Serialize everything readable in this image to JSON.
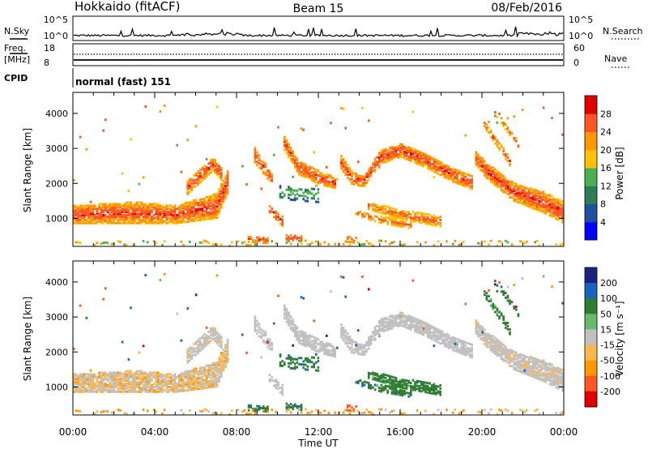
{
  "header": {
    "station": "Hokkaido (fitACF)",
    "beam": "Beam 15",
    "date": "08/Feb/2016"
  },
  "noise_panel": {
    "left_label": "N.Sky",
    "right_label": "N.Search",
    "ticks_left": [
      "10^5",
      "10^0"
    ],
    "ticks_right": [
      "10^5",
      "10^0"
    ]
  },
  "freq_panel": {
    "left_label_1": "Freq.",
    "left_label_2": "[MHz]",
    "ticks_left": [
      "18",
      "8"
    ],
    "ticks_right": [
      "60",
      "0"
    ],
    "right_label": "Nave"
  },
  "cpid_panel": {
    "label": "CPID",
    "mode": "normal (fast) 151"
  },
  "colors": {
    "power": [
      "#0000ff",
      "#1e50a0",
      "#2e7d55",
      "#4caf50",
      "#ffc107",
      "#ff9800",
      "#ff5722",
      "#e00000"
    ],
    "velocity": [
      "#1a237e",
      "#1565c0",
      "#2e7d32",
      "#66bb6a",
      "#c0c0c0",
      "#ffb74d",
      "#ff9800",
      "#ff5722",
      "#e00000"
    ]
  },
  "chart_data": [
    {
      "type": "heatmap",
      "title": "",
      "ylabel": "Slant Range [km]",
      "ylim": [
        200,
        4600
      ],
      "yticks": [
        "1000",
        "2000",
        "3000",
        "4000"
      ],
      "xlim": [
        0,
        24
      ],
      "colorbar_label": "Power [dB]",
      "colorbar_ticks": [
        "4",
        "8",
        "12",
        "16",
        "20",
        "24",
        "28"
      ],
      "colorbar_range": [
        0,
        32
      ]
    },
    {
      "type": "heatmap",
      "title": "",
      "ylabel": "Slant Range [km]",
      "ylim": [
        200,
        4600
      ],
      "yticks": [
        "1000",
        "2000",
        "3000",
        "4000"
      ],
      "xlim": [
        0,
        24
      ],
      "xticks": [
        "00:00",
        "04:00",
        "08:00",
        "12:00",
        "16:00",
        "20:00",
        "00:00"
      ],
      "xlabel": "Time UT",
      "colorbar_label": "Velocity [m s⁻¹]",
      "colorbar_ticks": [
        "200",
        "100",
        "50",
        "15",
        "-15",
        "-50",
        "-100",
        "-200"
      ]
    }
  ]
}
